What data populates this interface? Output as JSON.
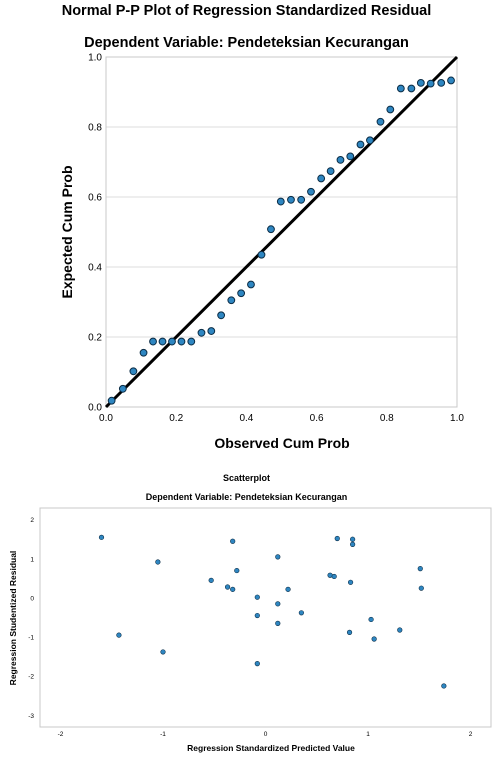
{
  "pp_plot": {
    "title": "Normal P-P Plot of Regression Standardized Residual",
    "subtitle": "Dependent Variable: Pendeteksian Kecurangan",
    "xlabel": "Observed Cum Prob",
    "ylabel": "Expected Cum Prob",
    "x_ticks": [
      "0.0",
      "0.2",
      "0.4",
      "0.6",
      "0.8",
      "1.0"
    ],
    "y_ticks": [
      "0.0",
      "0.2",
      "0.4",
      "0.6",
      "0.8",
      "1.0"
    ]
  },
  "scatter_plot": {
    "title": "Scatterplot",
    "subtitle": "Dependent Variable: Pendeteksian Kecurangan",
    "xlabel": "Regression Standardized Predicted Value",
    "ylabel": "Regression Studentized Residual",
    "x_ticks": [
      "-2",
      "-1",
      "0",
      "1",
      "2"
    ],
    "y_ticks": [
      "2",
      "1",
      "0",
      "-1",
      "-2",
      "-3"
    ]
  },
  "colors": {
    "point_fill": "#2e86c1",
    "point_stroke": "#0b2c45",
    "line": "#000000",
    "grid": "#dcdcdc"
  },
  "chart_data": [
    {
      "type": "scatter",
      "title": "Normal P-P Plot of Regression Standardized Residual",
      "subtitle": "Dependent Variable: Pendeteksian Kecurangan",
      "xlabel": "Observed Cum Prob",
      "ylabel": "Expected Cum Prob",
      "xlim": [
        0,
        1
      ],
      "ylim": [
        0,
        1
      ],
      "grid": "horizontal",
      "reference_line": [
        [
          0,
          0
        ],
        [
          1,
          1
        ]
      ],
      "points": [
        [
          0.016,
          0.018
        ],
        [
          0.048,
          0.052
        ],
        [
          0.078,
          0.102
        ],
        [
          0.107,
          0.155
        ],
        [
          0.134,
          0.187
        ],
        [
          0.161,
          0.187
        ],
        [
          0.188,
          0.187
        ],
        [
          0.215,
          0.187
        ],
        [
          0.243,
          0.187
        ],
        [
          0.272,
          0.212
        ],
        [
          0.3,
          0.217
        ],
        [
          0.328,
          0.262
        ],
        [
          0.357,
          0.305
        ],
        [
          0.385,
          0.325
        ],
        [
          0.413,
          0.35
        ],
        [
          0.443,
          0.435
        ],
        [
          0.47,
          0.508
        ],
        [
          0.498,
          0.587
        ],
        [
          0.527,
          0.592
        ],
        [
          0.556,
          0.592
        ],
        [
          0.584,
          0.615
        ],
        [
          0.613,
          0.653
        ],
        [
          0.64,
          0.674
        ],
        [
          0.668,
          0.706
        ],
        [
          0.696,
          0.716
        ],
        [
          0.725,
          0.75
        ],
        [
          0.752,
          0.762
        ],
        [
          0.782,
          0.815
        ],
        [
          0.81,
          0.85
        ],
        [
          0.84,
          0.91
        ],
        [
          0.87,
          0.91
        ],
        [
          0.897,
          0.926
        ],
        [
          0.925,
          0.924
        ],
        [
          0.955,
          0.926
        ],
        [
          0.983,
          0.933
        ]
      ]
    },
    {
      "type": "scatter",
      "title": "Scatterplot",
      "subtitle": "Dependent Variable: Pendeteksian Kecurangan",
      "xlabel": "Regression Standardized Predicted Value",
      "ylabel": "Regression Studentized Residual",
      "xlim": [
        -2.2,
        2.2
      ],
      "ylim": [
        -3.3,
        2.3
      ],
      "grid": "off",
      "points": [
        [
          -1.6,
          1.55
        ],
        [
          -1.43,
          -0.95
        ],
        [
          -1.05,
          0.92
        ],
        [
          -1.0,
          -1.38
        ],
        [
          -0.53,
          0.45
        ],
        [
          -0.37,
          0.28
        ],
        [
          -0.32,
          1.45
        ],
        [
          -0.32,
          0.22
        ],
        [
          -0.28,
          0.7
        ],
        [
          -0.08,
          -0.45
        ],
        [
          -0.08,
          0.02
        ],
        [
          -0.08,
          -1.68
        ],
        [
          0.12,
          1.05
        ],
        [
          0.12,
          -0.15
        ],
        [
          0.12,
          -0.65
        ],
        [
          0.22,
          0.22
        ],
        [
          0.35,
          -0.38
        ],
        [
          0.63,
          0.58
        ],
        [
          0.67,
          0.55
        ],
        [
          0.7,
          1.52
        ],
        [
          0.82,
          -0.88
        ],
        [
          0.83,
          0.4
        ],
        [
          0.85,
          1.5
        ],
        [
          0.85,
          1.37
        ],
        [
          1.03,
          -0.55
        ],
        [
          1.06,
          -1.05
        ],
        [
          1.31,
          -0.82
        ],
        [
          1.51,
          0.75
        ],
        [
          1.52,
          0.25
        ],
        [
          1.74,
          -2.25
        ]
      ]
    }
  ]
}
